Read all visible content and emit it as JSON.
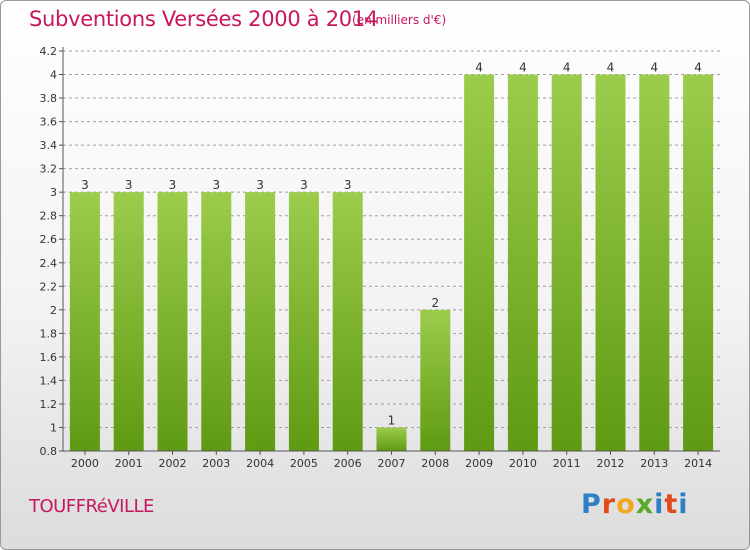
{
  "header": {
    "title": "Subventions Versées 2000 à 2014",
    "unit": "(en milliers d'€)"
  },
  "footer": {
    "commune": "TOUFFRéVILLE",
    "logo": {
      "letters": [
        "P",
        "r",
        "o",
        "x",
        "i",
        "t",
        "i"
      ],
      "colors": [
        "#2e7fc4",
        "#e2491b",
        "#f0a81e",
        "#5aa827",
        "#2e7fc4",
        "#e2491b",
        "#2e7fc4"
      ]
    }
  },
  "colors": {
    "title": "#c8175e",
    "bar_top": "#9ccc4c",
    "bar_bottom": "#5f9a13",
    "grid": "#a0a0a0",
    "axis": "#555555"
  },
  "chart_data": {
    "type": "bar",
    "categories": [
      "2000",
      "2001",
      "2002",
      "2003",
      "2004",
      "2005",
      "2006",
      "2007",
      "2008",
      "2009",
      "2010",
      "2011",
      "2012",
      "2013",
      "2014"
    ],
    "values": [
      3,
      3,
      3,
      3,
      3,
      3,
      3,
      1,
      2,
      4,
      4,
      4,
      4,
      4,
      4
    ],
    "data_labels": [
      "3",
      "3",
      "3",
      "3",
      "3",
      "3",
      "3",
      "1",
      "2",
      "4",
      "4",
      "4",
      "4",
      "4",
      "4"
    ],
    "y_ticks": [
      {
        "label": "0.8"
      },
      {
        "label": "1"
      },
      {
        "label": "1.2"
      },
      {
        "label": "1.4"
      },
      {
        "label": "1.6"
      },
      {
        "label": "1.8"
      },
      {
        "label": "2"
      },
      {
        "label": "2.2"
      },
      {
        "label": "2.4"
      },
      {
        "label": "2.6"
      },
      {
        "label": "2.8"
      },
      {
        "label": "3"
      },
      {
        "label": "3.2"
      },
      {
        "label": "3.4"
      },
      {
        "label": "3.6"
      },
      {
        "label": "3.8"
      },
      {
        "label": "4"
      },
      {
        "label": "4.2"
      }
    ],
    "ylim": [
      0.8,
      4.2
    ],
    "grid": true,
    "legend": "none",
    "title": "Subventions Versées 2000 à 2014",
    "xlabel": "",
    "ylabel": ""
  }
}
